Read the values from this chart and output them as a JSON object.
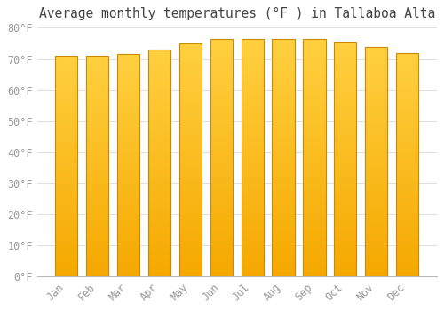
{
  "title": "Average monthly temperatures (°F ) in Tallaboa Alta",
  "months": [
    "Jan",
    "Feb",
    "Mar",
    "Apr",
    "May",
    "Jun",
    "Jul",
    "Aug",
    "Sep",
    "Oct",
    "Nov",
    "Dec"
  ],
  "values": [
    71.0,
    71.0,
    71.5,
    73.0,
    75.0,
    76.5,
    76.5,
    76.5,
    76.5,
    75.5,
    74.0,
    72.0
  ],
  "bar_color_top": "#FFD040",
  "bar_color_bottom": "#F5A800",
  "bar_edge_color": "#CC8800",
  "background_color": "#FFFFFF",
  "grid_color": "#E0E0E0",
  "ylim": [
    0,
    80
  ],
  "yticks": [
    0,
    10,
    20,
    30,
    40,
    50,
    60,
    70,
    80
  ],
  "tick_label_color": "#999999",
  "title_color": "#444444",
  "title_fontsize": 10.5,
  "tick_fontsize": 8.5,
  "bar_width": 0.72,
  "n_grad": 100
}
